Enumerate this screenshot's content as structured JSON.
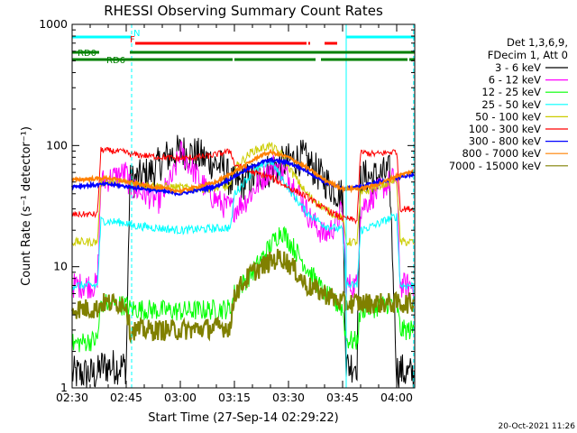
{
  "chart_data": {
    "type": "line",
    "title": "RHESSI Observing Summary Count Rates",
    "xlabel": "Start Time (27-Sep-14 02:29:22)",
    "ylabel": "Count Rate (s⁻¹ detector⁻¹)",
    "yscale": "log",
    "xlim_minutes": [
      0,
      95
    ],
    "ylim": [
      1,
      1000
    ],
    "x_ticks": [
      {
        "label": "02:30",
        "minute": 0
      },
      {
        "label": "02:45",
        "minute": 15
      },
      {
        "label": "03:00",
        "minute": 30
      },
      {
        "label": "03:15",
        "minute": 45
      },
      {
        "label": "03:30",
        "minute": 60
      },
      {
        "label": "03:45",
        "minute": 75
      },
      {
        "label": "04:00",
        "minute": 90
      }
    ],
    "y_ticks": [
      {
        "label": "1",
        "value": 1
      },
      {
        "label": "10",
        "value": 10
      },
      {
        "label": "100",
        "value": 100
      },
      {
        "label": "1000",
        "value": 1000
      }
    ],
    "legend": {
      "position": "right",
      "header": [
        "Det 1,3,6,9,",
        "FDecim 1, Att 0"
      ]
    },
    "series": [
      {
        "name": "3 - 6 keV",
        "color": "#000000",
        "x": [
          0,
          7,
          8,
          15,
          16,
          22,
          26,
          30,
          34,
          38,
          42,
          44,
          45,
          48,
          52,
          56,
          60,
          64,
          68,
          72,
          75,
          76,
          79,
          80,
          84,
          88,
          90,
          91,
          93,
          95
        ],
        "y": [
          1.3,
          1.3,
          1.5,
          1.5,
          50,
          60,
          80,
          90,
          85,
          75,
          65,
          50,
          48,
          50,
          58,
          65,
          75,
          80,
          60,
          45,
          38,
          1.5,
          1.6,
          55,
          55,
          60,
          1.4,
          1.4,
          1.3,
          1.3
        ]
      },
      {
        "name": "6 - 12 keV",
        "color": "#ff00ff",
        "x": [
          0,
          7,
          8,
          15,
          16,
          20,
          24,
          28,
          30,
          34,
          38,
          42,
          45,
          48,
          52,
          56,
          60,
          63,
          66,
          70,
          73,
          75,
          76,
          79,
          80,
          84,
          88,
          90,
          91,
          95
        ],
        "y": [
          7,
          7,
          50,
          60,
          45,
          40,
          35,
          55,
          90,
          60,
          40,
          32,
          30,
          35,
          50,
          70,
          55,
          40,
          25,
          18,
          22,
          30,
          7,
          7,
          30,
          40,
          50,
          55,
          7,
          7
        ]
      },
      {
        "name": "12 - 25 keV",
        "color": "#00ff00",
        "x": [
          0,
          7,
          8,
          15,
          16,
          30,
          44,
          45,
          50,
          55,
          58,
          61,
          66,
          70,
          75,
          76,
          79,
          80,
          84,
          88,
          90,
          91,
          95
        ],
        "y": [
          2.3,
          2.5,
          5,
          4.8,
          4.5,
          4.3,
          4.5,
          6,
          9,
          15,
          20,
          15,
          9,
          6,
          4.5,
          2.5,
          2.4,
          4.5,
          4.6,
          5,
          5,
          3,
          3
        ]
      },
      {
        "name": "25 - 50 keV",
        "color": "#00ffff",
        "x": [
          0,
          7,
          8,
          15,
          16,
          30,
          44,
          45,
          50,
          55,
          58,
          61,
          65,
          70,
          75,
          76,
          79,
          80,
          84,
          88,
          90,
          91,
          95
        ],
        "y": [
          7,
          7,
          24,
          23,
          22,
          20,
          21,
          40,
          60,
          75,
          55,
          40,
          28,
          22,
          20,
          7,
          7,
          20,
          22,
          25,
          26,
          7,
          7
        ]
      },
      {
        "name": "50 - 100 keV",
        "color": "#cccc00",
        "x": [
          0,
          7,
          8,
          15,
          16,
          25,
          30,
          38,
          44,
          45,
          50,
          55,
          58,
          61,
          65,
          70,
          75,
          76,
          79,
          80,
          84,
          88,
          90,
          91,
          95
        ],
        "y": [
          16,
          16,
          50,
          50,
          48,
          46,
          45,
          44,
          46,
          65,
          90,
          100,
          85,
          60,
          40,
          30,
          25,
          16,
          16,
          40,
          45,
          50,
          52,
          16,
          16
        ]
      },
      {
        "name": "100 - 300 keV",
        "color": "#ff0000",
        "x": [
          0,
          7,
          8,
          15,
          16,
          25,
          30,
          38,
          44,
          45,
          50,
          55,
          60,
          65,
          70,
          75,
          76,
          79,
          80,
          84,
          88,
          90,
          91,
          95
        ],
        "y": [
          27,
          27,
          92,
          88,
          85,
          80,
          78,
          82,
          90,
          70,
          60,
          55,
          45,
          38,
          30,
          25,
          25,
          24,
          88,
          85,
          88,
          90,
          30,
          30
        ]
      },
      {
        "name": "300 - 800 keV",
        "color": "#0000ff",
        "x": [
          0,
          10,
          20,
          30,
          40,
          47,
          52,
          55,
          60,
          65,
          70,
          75,
          80,
          85,
          90,
          95
        ],
        "y": [
          46,
          48,
          44,
          40,
          46,
          60,
          72,
          76,
          72,
          62,
          50,
          44,
          46,
          50,
          54,
          58
        ]
      },
      {
        "name": "800 - 7000 keV",
        "color": "#ff8000",
        "x": [
          0,
          10,
          20,
          30,
          40,
          47,
          52,
          55,
          60,
          65,
          70,
          75,
          80,
          85,
          90,
          95
        ],
        "y": [
          52,
          54,
          47,
          42,
          50,
          66,
          82,
          88,
          80,
          66,
          52,
          44,
          44,
          48,
          56,
          62
        ]
      },
      {
        "name": "7000 - 15000 keV",
        "color": "#808000",
        "x": [
          0,
          7,
          8,
          15,
          16,
          30,
          44,
          45,
          50,
          55,
          58,
          61,
          65,
          70,
          75,
          76,
          79,
          80,
          84,
          88,
          90,
          91,
          95
        ],
        "y": [
          4.5,
          4.5,
          5,
          5,
          3,
          3,
          3.2,
          6,
          9,
          11,
          12,
          10,
          7,
          6,
          5,
          5,
          5,
          5,
          5,
          5,
          5,
          5,
          5
        ]
      }
    ],
    "annotations": {
      "bars": [
        {
          "label": "N",
          "color": "#00ffff",
          "segments": [
            [
              0,
              16.5
            ],
            [
              76,
              95
            ]
          ],
          "level": 1,
          "label_at": 16.5
        },
        {
          "label": "F",
          "color": "#ff0000",
          "segments": [
            [
              17.5,
              65
            ],
            [
              65.5,
              66
            ],
            [
              70,
              73.5
            ]
          ],
          "level": 2,
          "label_at": 15.5
        },
        {
          "label": "RD0",
          "color": "#008000",
          "segments": [
            [
              0,
              7.5
            ],
            [
              16,
              95
            ]
          ],
          "level": 3,
          "label_at": 1
        },
        {
          "label": "RD6",
          "color": "#008000",
          "segments": [
            [
              0,
              44.5
            ],
            [
              45,
              67.5
            ],
            [
              69,
              93
            ],
            [
              93.5,
              95
            ]
          ],
          "level": 4,
          "label_at": 9
        }
      ],
      "vlines": [
        {
          "minute": 16.5,
          "color": "#00ffff",
          "style": "dashed"
        },
        {
          "minute": 76,
          "color": "#00ffff",
          "style": "solid"
        },
        {
          "minute": 94.7,
          "color": "#00ffff",
          "style": "dashed"
        }
      ]
    },
    "footer": "20-Oct-2021 11:26",
    "grid": false
  }
}
